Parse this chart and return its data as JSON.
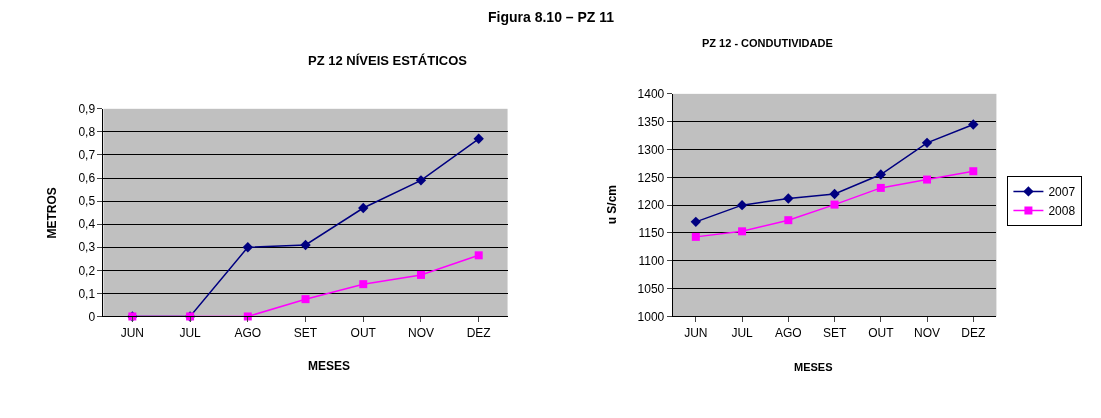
{
  "chart_data": [
    {
      "type": "line",
      "title": "PZ 12 NÍVEIS ESTÁTICOS",
      "xlabel": "MESES",
      "ylabel": "METROS",
      "annotations": [
        "Figura 8.10 – PZ 11"
      ],
      "categories": [
        "JUN",
        "JUL",
        "AGO",
        "SET",
        "OUT",
        "NOV",
        "DEZ"
      ],
      "series": [
        {
          "color": "#000080",
          "marker": "diamond",
          "values": [
            0,
            0,
            0.3,
            0.31,
            0.47,
            0.59,
            0.77
          ]
        },
        {
          "color": "#ff00ff",
          "marker": "square",
          "values": [
            0,
            0,
            0,
            0.075,
            0.14,
            0.18,
            0.265
          ]
        }
      ],
      "ylim": [
        0,
        0.9
      ],
      "yticks": [
        0,
        {
          "value": 0.1,
          "label": "0,1"
        },
        {
          "value": 0.2,
          "label": "0,2"
        },
        {
          "value": 0.3,
          "label": "0,3"
        },
        {
          "value": 0.4,
          "label": "0,4"
        },
        {
          "value": 0.5,
          "label": "0,5"
        },
        {
          "value": 0.6,
          "label": "0,6"
        },
        {
          "value": 0.7,
          "label": "0,7"
        },
        {
          "value": 0.8,
          "label": "0,8"
        },
        {
          "value": 0.9,
          "label": "0,9"
        }
      ],
      "grid": "y"
    },
    {
      "type": "line",
      "title": "PZ 12 - CONDUTIVIDADE",
      "xlabel": "MESES",
      "ylabel": "u S/cm",
      "categories": [
        "JUN",
        "JUL",
        "AGO",
        "SET",
        "OUT",
        "NOV",
        "DEZ"
      ],
      "series": [
        {
          "name": "2007",
          "color": "#000080",
          "marker": "diamond",
          "values": [
            1170,
            1200,
            1212,
            1220,
            1255,
            1312,
            1345
          ]
        },
        {
          "name": "2008",
          "color": "#ff00ff",
          "marker": "square",
          "values": [
            1143,
            1153,
            1173,
            1201,
            1231,
            1246,
            1261
          ]
        }
      ],
      "ylim": [
        1000,
        1400
      ],
      "yticks": [
        1000,
        1050,
        1100,
        1150,
        1200,
        1250,
        1300,
        1350,
        1400
      ],
      "grid": "y",
      "legend": "right"
    }
  ]
}
